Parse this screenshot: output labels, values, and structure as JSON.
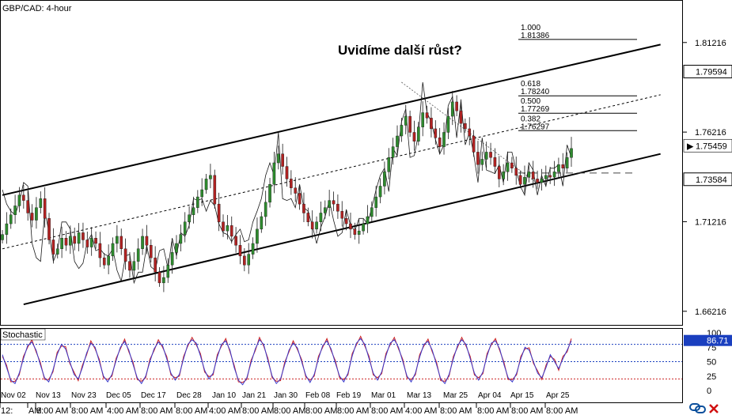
{
  "chart_data": [
    {
      "type": "candlestick",
      "title": "GBP/CAD: 4-hour",
      "annotation": "Uvidíme další růst?",
      "ylim": [
        1.655,
        1.835
      ],
      "y_ticks": [
        "1.81216",
        "1.76216",
        "1.71216",
        "1.66216"
      ],
      "price_levels": [
        {
          "label": "1.79594",
          "value": 1.79594,
          "style": "box"
        },
        {
          "label": "1.75459",
          "value": 1.75459,
          "style": "current"
        },
        {
          "label": "1.73584",
          "value": 1.73584,
          "style": "box"
        }
      ],
      "x_labels_top": [
        "Nov 02",
        "Nov 13",
        "Nov 23",
        "Dec 05",
        "Dec 17",
        "Dec 28",
        "Jan 10",
        "Jan 21",
        "Jan 30",
        "Feb 08",
        "Feb 19",
        "Mar 01",
        "Mar 13",
        "Mar 25",
        "Apr 04",
        "Apr 15",
        "Apr 25"
      ],
      "x_labels_bottom": [
        "12:",
        "AM",
        "8:00 AM",
        "8:00 AM",
        "4:00 AM",
        "8:00 AM",
        "8:00 AM",
        "4:00 AM",
        "8:00 AM",
        "8:00 AM",
        "8:00 AM",
        "8:00 AM",
        "8:00 AM",
        "4:00 AM",
        "8:00 AM",
        "8:00 AM",
        "8:00 AM",
        "8:00 AM"
      ],
      "fibonacci": [
        {
          "ratio": "1.000",
          "price": "1.81386"
        },
        {
          "ratio": "0.618",
          "price": "1.78240"
        },
        {
          "ratio": "0.500",
          "price": "1.77269"
        },
        {
          "ratio": "0.382",
          "price": "1.76297"
        }
      ],
      "channel": {
        "upper": [
          [
            0,
            1.727
          ],
          [
            155,
            1.811
          ]
        ],
        "lower": [
          [
            5,
            1.666
          ],
          [
            155,
            1.75
          ]
        ],
        "middle": [
          [
            0,
            1.697
          ],
          [
            155,
            1.783
          ]
        ]
      },
      "series": [
        {
          "values": [
            1.705,
            1.711,
            1.716,
            1.721,
            1.727,
            1.724,
            1.717,
            1.713,
            1.72,
            1.725,
            1.714,
            1.702,
            1.694,
            1.697,
            1.703,
            1.699,
            1.704,
            1.7,
            1.706,
            1.702,
            1.698,
            1.703,
            1.7,
            1.692,
            1.688,
            1.693,
            1.7,
            1.704,
            1.697,
            1.69,
            1.685,
            1.69,
            1.697,
            1.704,
            1.699,
            1.692,
            1.684,
            1.678,
            1.681,
            1.688,
            1.695,
            1.7,
            1.705,
            1.712,
            1.716,
            1.72,
            1.726,
            1.73,
            1.736,
            1.738,
            1.722,
            1.712,
            1.707,
            1.71,
            1.704,
            1.699,
            1.693,
            1.688,
            1.694,
            1.7,
            1.708,
            1.715,
            1.723,
            1.733,
            1.745,
            1.75,
            1.743,
            1.736,
            1.731,
            1.728,
            1.722,
            1.717,
            1.712,
            1.708,
            1.712,
            1.717,
            1.72,
            1.724,
            1.722,
            1.718,
            1.714,
            1.711,
            1.708,
            1.705,
            1.707,
            1.711,
            1.715,
            1.72,
            1.726,
            1.732,
            1.74,
            1.748,
            1.754,
            1.76,
            1.766,
            1.771,
            1.762,
            1.757,
            1.765,
            1.773,
            1.77,
            1.764,
            1.759,
            1.754,
            1.762,
            1.771,
            1.779,
            1.774,
            1.767,
            1.764,
            1.76,
            1.751,
            1.744,
            1.747,
            1.751,
            1.748,
            1.743,
            1.736,
            1.74,
            1.745,
            1.742,
            1.738,
            1.733,
            1.737,
            1.74,
            1.736,
            1.734,
            1.736,
            1.738,
            1.737,
            1.74,
            1.744,
            1.742,
            1.748,
            1.753
          ],
          "overlay": [
            1.73,
            1.722,
            1.718,
            1.716,
            1.723,
            1.734,
            1.732,
            1.7,
            1.692,
            1.69,
            1.718,
            1.706,
            1.69,
            1.696,
            1.712,
            1.712,
            1.708,
            1.69,
            1.686,
            1.689,
            1.701,
            1.705,
            1.696,
            1.697,
            1.694,
            1.693,
            1.697,
            1.685,
            1.679,
            1.693,
            1.694,
            1.678,
            1.684,
            1.684,
            1.699,
            1.687,
            1.685,
            1.696,
            1.697,
            1.686,
            1.703,
            1.693,
            1.706,
            1.704,
            1.71,
            1.725,
            1.724,
            1.725,
            1.718,
            1.724,
            1.721,
            1.711,
            1.706,
            1.705,
            1.701,
            1.705,
            1.708,
            1.701,
            1.702,
            1.712,
            1.718,
            1.725,
            1.738,
            1.745,
            1.738,
            1.762,
            1.725,
            1.724,
            1.725,
            1.72,
            1.733,
            1.72,
            1.718,
            1.71,
            1.7,
            1.709,
            1.715,
            1.724,
            1.713,
            1.704,
            1.706,
            1.719,
            1.71,
            1.707,
            1.714,
            1.714,
            1.711,
            1.72,
            1.73,
            1.738,
            1.742,
            1.729,
            1.753,
            1.749,
            1.768,
            1.775,
            1.748,
            1.749,
            1.761,
            1.79,
            1.773,
            1.768,
            1.758,
            1.75,
            1.755,
            1.777,
            1.782,
            1.759,
            1.78,
            1.755,
            1.762,
            1.75,
            1.734,
            1.759,
            1.741,
            1.74,
            1.739,
            1.744,
            1.734,
            1.751,
            1.751,
            1.741,
            1.732,
            1.727,
            1.745,
            1.741,
            1.727,
            1.738,
            1.732,
            1.742,
            1.742,
            1.744,
            1.732,
            1.755,
            1.748
          ]
        }
      ]
    },
    {
      "type": "line",
      "title": "Stochastic",
      "ylim": [
        0,
        100
      ],
      "y_ticks": [
        "100",
        "75",
        "50",
        "25",
        "0"
      ],
      "current_label": "86.71",
      "levels": [
        80,
        50,
        20
      ],
      "series": [
        {
          "values": [
            62,
            40,
            18,
            12,
            30,
            55,
            78,
            84,
            70,
            45,
            22,
            15,
            35,
            62,
            80,
            72,
            50,
            28,
            20,
            40,
            65,
            82,
            75,
            50,
            25,
            15,
            28,
            52,
            75,
            85,
            70,
            45,
            22,
            12,
            25,
            50,
            72,
            84,
            78,
            55,
            30,
            18,
            28,
            55,
            80,
            88,
            82,
            60,
            35,
            20,
            30,
            58,
            80,
            86,
            70,
            40,
            18,
            10,
            22,
            48,
            72,
            88,
            80,
            52,
            25,
            12,
            20,
            45,
            70,
            82,
            74,
            50,
            26,
            14,
            28,
            55,
            78,
            86,
            72,
            48,
            25,
            15,
            30,
            60,
            82,
            90,
            80,
            55,
            30,
            18,
            32,
            60,
            82,
            88,
            75,
            50,
            25,
            15,
            30,
            58,
            80,
            85,
            70,
            45,
            20,
            12,
            28,
            55,
            78,
            88,
            80,
            55,
            30,
            18,
            32,
            60,
            82,
            86,
            72,
            45,
            22,
            15,
            30,
            55,
            75,
            70,
            50,
            30,
            22,
            40,
            62,
            50,
            38,
            55,
            70,
            86
          ]
        }
      ]
    }
  ]
}
